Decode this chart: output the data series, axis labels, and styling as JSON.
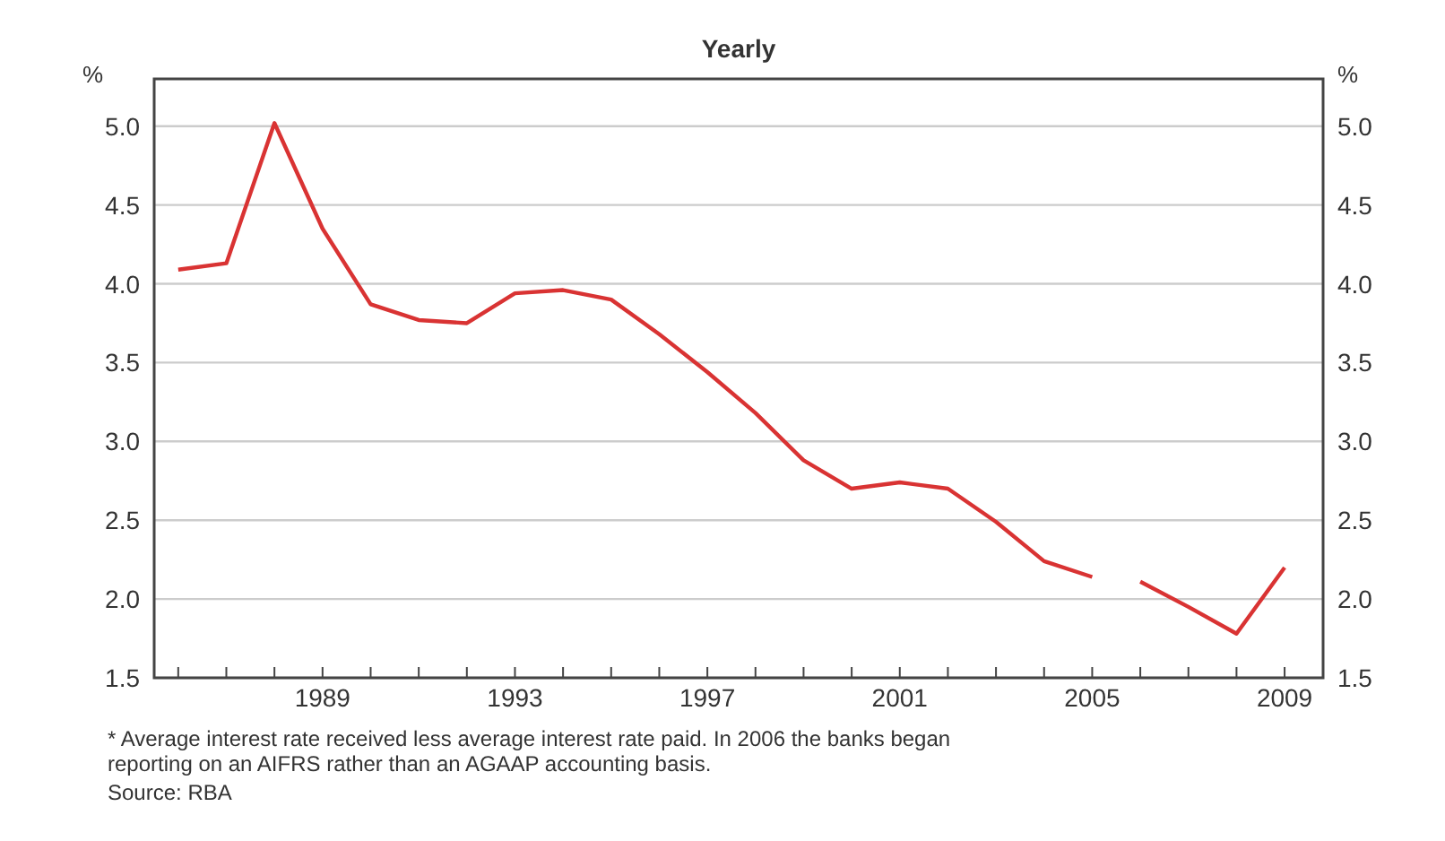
{
  "chart_data": {
    "type": "line",
    "title": "Yearly",
    "ylabel": "%",
    "y2label": "%",
    "series": [
      {
        "color": "#d93333",
        "x": [
          1986,
          1987,
          1988,
          1989,
          1990,
          1991,
          1992,
          1993,
          1994,
          1995,
          1996,
          1997,
          1998,
          1999,
          2000,
          2001,
          2002,
          2003,
          2004,
          2005
        ],
        "values": [
          4.09,
          4.13,
          5.02,
          4.35,
          3.87,
          3.77,
          3.75,
          3.94,
          3.96,
          3.9,
          3.68,
          3.44,
          3.18,
          2.88,
          2.7,
          2.74,
          2.7,
          2.49,
          2.24,
          2.14
        ]
      },
      {
        "color": "#d93333",
        "x": [
          2006,
          2007,
          2008,
          2009
        ],
        "values": [
          2.11,
          1.95,
          1.78,
          2.2
        ]
      }
    ],
    "xlim": [
      1985.5,
      2009.8
    ],
    "xticks": [
      {
        "value": 1986,
        "label": null
      },
      {
        "value": 1987,
        "label": null
      },
      {
        "value": 1988,
        "label": null
      },
      1989,
      {
        "value": 1990,
        "label": null
      },
      {
        "value": 1991,
        "label": null
      },
      {
        "value": 1992,
        "label": null
      },
      1993,
      {
        "value": 1994,
        "label": null
      },
      {
        "value": 1995,
        "label": null
      },
      {
        "value": 1996,
        "label": null
      },
      1997,
      {
        "value": 1998,
        "label": null
      },
      {
        "value": 1999,
        "label": null
      },
      {
        "value": 2000,
        "label": null
      },
      2001,
      {
        "value": 2002,
        "label": null
      },
      {
        "value": 2003,
        "label": null
      },
      {
        "value": 2004,
        "label": null
      },
      2005,
      {
        "value": 2006,
        "label": null
      },
      {
        "value": 2007,
        "label": null
      },
      {
        "value": 2008,
        "label": null
      },
      2009
    ],
    "ylim": [
      1.5,
      5.3
    ],
    "yticks": [
      {
        "value": 1.5,
        "label": "1.5"
      },
      {
        "value": 2,
        "label": "2.0"
      },
      {
        "value": 2.5,
        "label": "2.5"
      },
      {
        "value": 3,
        "label": "3.0"
      },
      {
        "value": 3.5,
        "label": "3.5"
      },
      {
        "value": 4,
        "label": "4.0"
      },
      {
        "value": 4.5,
        "label": "4.5"
      },
      {
        "value": 5,
        "label": "5.0"
      }
    ],
    "y2lim": [
      1.5,
      5.3
    ],
    "y2ticks": [
      {
        "value": 1.5,
        "label": "1.5"
      },
      {
        "value": 2,
        "label": "2.0"
      },
      {
        "value": 2.5,
        "label": "2.5"
      },
      {
        "value": 3,
        "label": "3.0"
      },
      {
        "value": 3.5,
        "label": "3.5"
      },
      {
        "value": 4,
        "label": "4.0"
      },
      {
        "value": 4.5,
        "label": "4.5"
      },
      {
        "value": 5,
        "label": "5.0"
      }
    ],
    "grid": "y",
    "marker": "none",
    "line_style": "solid",
    "annotations": [
      "* Average interest rate received less average interest rate paid. In 2006 the banks began reporting on an AIFRS rather than an AGAAP accounting basis.",
      "Source: RBA"
    ]
  }
}
